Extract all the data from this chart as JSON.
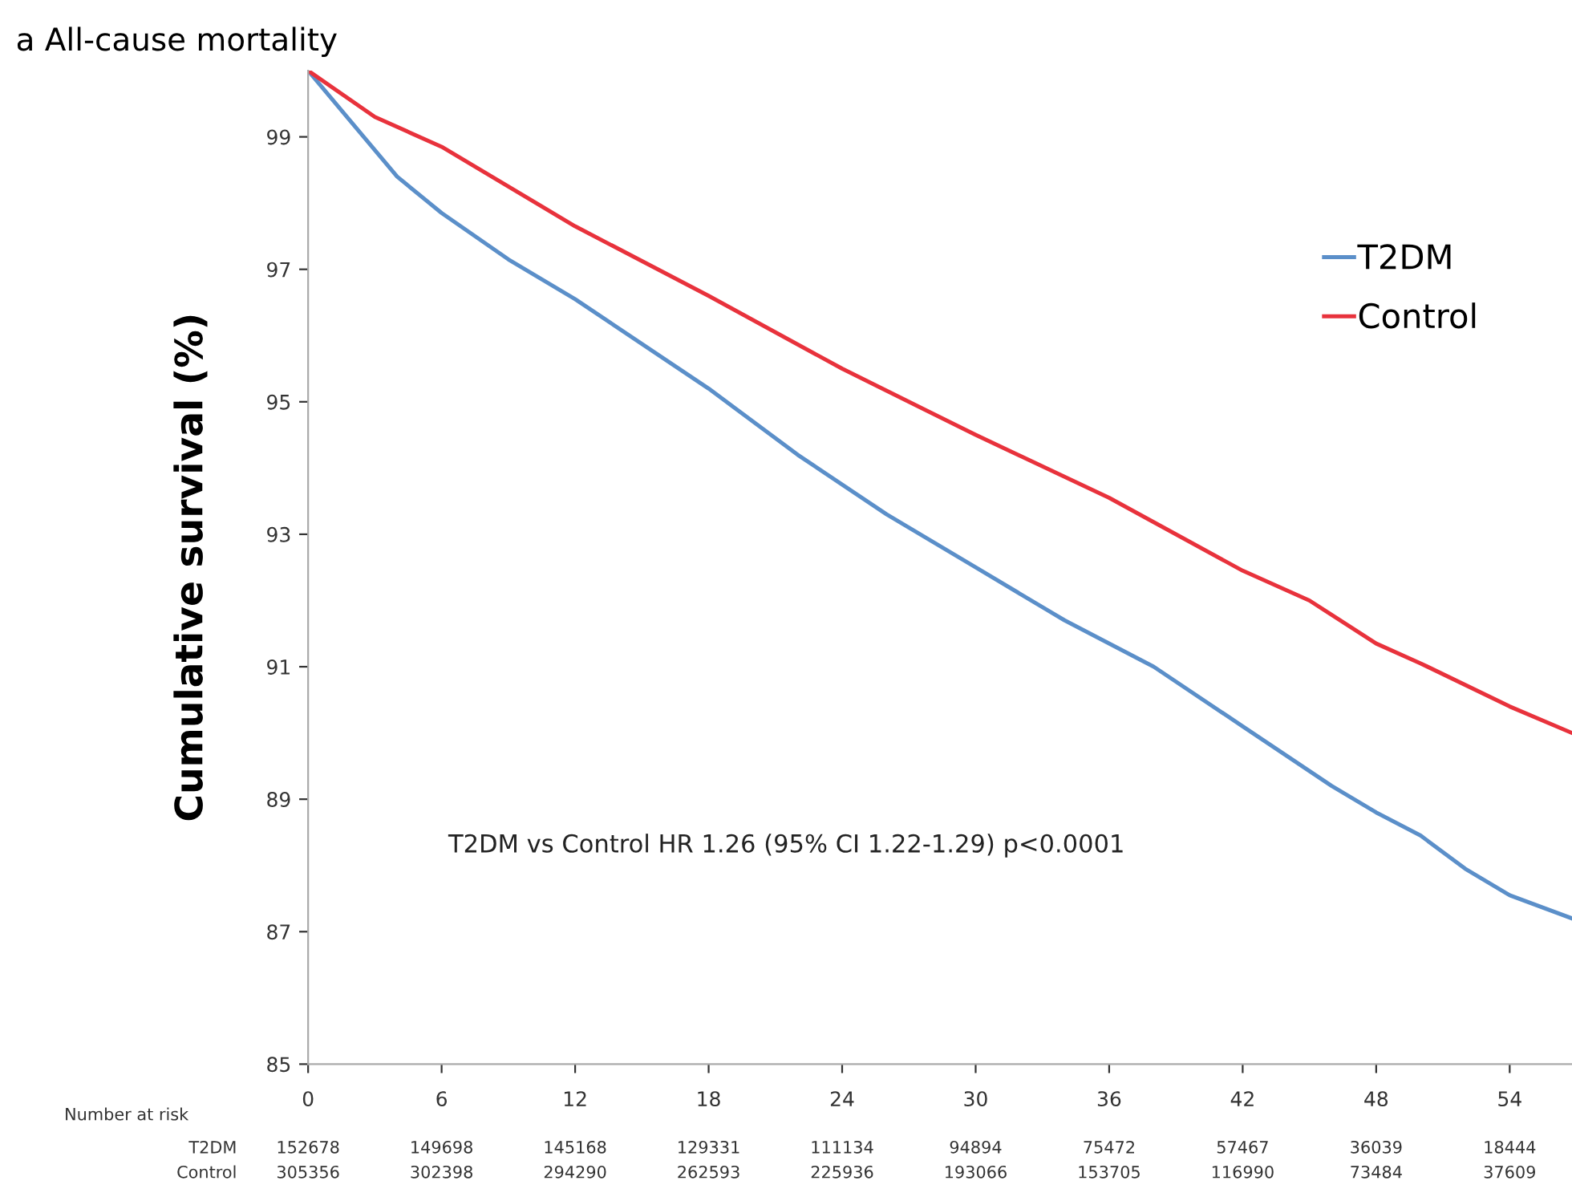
{
  "chart_data": {
    "type": "line",
    "title": "a All-cause mortality",
    "ylabel": "Cumulative survival (%)",
    "xlim": [
      0,
      56.8
    ],
    "xticks": [
      0,
      6,
      12,
      18,
      24,
      30,
      36,
      42,
      48,
      54
    ],
    "ylim": [
      85,
      100
    ],
    "yticks": [
      85,
      87,
      89,
      91,
      93,
      95,
      97,
      99
    ],
    "grid": false,
    "legend": "right",
    "line_style": "solid",
    "marker": "none",
    "series": [
      {
        "name": "T2DM",
        "color": "#5b8fc9",
        "x": [
          0,
          2,
          4,
          6,
          9,
          12,
          18,
          22,
          26,
          30,
          34,
          38,
          42,
          46,
          48,
          50,
          52,
          54,
          56.8
        ],
        "values": [
          100,
          99.2,
          98.4,
          97.85,
          97.15,
          96.55,
          95.2,
          94.2,
          93.3,
          92.5,
          91.7,
          91.0,
          90.1,
          89.2,
          88.8,
          88.45,
          87.95,
          87.55,
          87.2
        ]
      },
      {
        "name": "Control",
        "color": "#e8323c",
        "x": [
          0,
          3,
          6,
          12,
          18,
          24,
          30,
          36,
          42,
          45,
          48,
          50,
          54,
          56.8
        ],
        "values": [
          100,
          99.3,
          98.85,
          97.65,
          96.6,
          95.5,
          94.5,
          93.55,
          92.45,
          92.0,
          91.35,
          91.05,
          90.4,
          90.0
        ]
      }
    ],
    "annotations": [
      "T2DM vs Control HR 1.26 (95% CI 1.22-1.29) p<0.0001",
      "Number at risk",
      "T2DM",
      "152678",
      "149698",
      "145168",
      "129331",
      "111134",
      "94894",
      "75472",
      "57467",
      "36039",
      "18444",
      "Control",
      "305356",
      "302398",
      "294290",
      "262593",
      "225936",
      "193066",
      "153705",
      "116990",
      "73484",
      "37609"
    ]
  }
}
